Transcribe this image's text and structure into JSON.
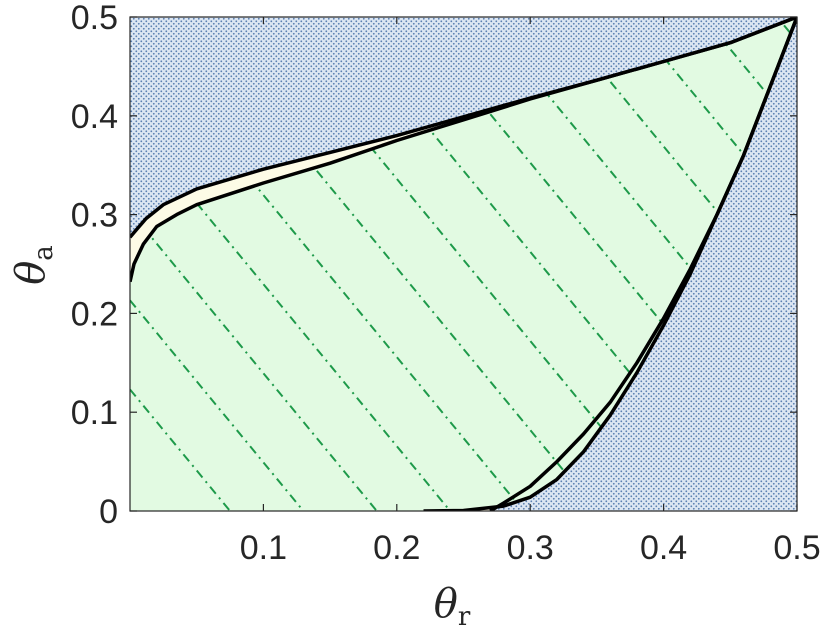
{
  "chart_data": {
    "type": "area",
    "title": "",
    "xlabel": {
      "symbol": "θ",
      "subscript": "r"
    },
    "ylabel": {
      "symbol": "θ",
      "subscript": "a"
    },
    "xlim": [
      0,
      0.5
    ],
    "ylim": [
      0,
      0.5
    ],
    "xticks": [
      0.1,
      0.2,
      0.3,
      0.4,
      0.5
    ],
    "xtick_labels": [
      "0.1",
      "0.2",
      "0.3",
      "0.4",
      "0.5"
    ],
    "yticks": [
      0,
      0.1,
      0.2,
      0.3,
      0.4,
      0.5
    ],
    "ytick_labels": [
      "0",
      "0.1",
      "0.2",
      "0.3",
      "0.4",
      "0.5"
    ],
    "grid": false,
    "colors": {
      "outer_fill": "#dce6f2",
      "outer_dots": "#5a7fb0",
      "main_fill": "#e2fae2",
      "band_fill": "#fdfbe6",
      "boundary": "#000000",
      "hatch": "#1e9a4a"
    },
    "regions": [
      {
        "role": "outer-dotted",
        "upper_boundary": [
          [
            0,
            0.277
          ],
          [
            0.005,
            0.285
          ],
          [
            0.012,
            0.296
          ],
          [
            0.025,
            0.31
          ],
          [
            0.05,
            0.326
          ],
          [
            0.1,
            0.346
          ],
          [
            0.15,
            0.363
          ],
          [
            0.2,
            0.38
          ],
          [
            0.25,
            0.399
          ],
          [
            0.3,
            0.418
          ],
          [
            0.35,
            0.436
          ],
          [
            0.4,
            0.455
          ],
          [
            0.45,
            0.474
          ],
          [
            0.5,
            0.5
          ]
        ],
        "lower_right_boundary": [
          [
            0.5,
            0.5
          ],
          [
            0.48,
            0.43
          ],
          [
            0.46,
            0.36
          ],
          [
            0.44,
            0.3
          ],
          [
            0.42,
            0.245
          ],
          [
            0.4,
            0.195
          ],
          [
            0.38,
            0.15
          ],
          [
            0.36,
            0.11
          ],
          [
            0.34,
            0.078
          ],
          [
            0.32,
            0.05
          ],
          [
            0.3,
            0.025
          ],
          [
            0.28,
            0.008
          ],
          [
            0.27,
            0.0
          ]
        ]
      },
      {
        "role": "main-hatched",
        "upper_boundary": [
          [
            0,
            0.232
          ],
          [
            0.003,
            0.25
          ],
          [
            0.01,
            0.27
          ],
          [
            0.02,
            0.288
          ],
          [
            0.035,
            0.3
          ],
          [
            0.05,
            0.31
          ],
          [
            0.1,
            0.332
          ],
          [
            0.15,
            0.352
          ],
          [
            0.2,
            0.375
          ],
          [
            0.25,
            0.396
          ],
          [
            0.3,
            0.417
          ],
          [
            0.35,
            0.436
          ],
          [
            0.4,
            0.455
          ],
          [
            0.45,
            0.474
          ],
          [
            0.5,
            0.5
          ]
        ],
        "lower_right_boundary": [
          [
            0.5,
            0.5
          ],
          [
            0.48,
            0.43
          ],
          [
            0.46,
            0.36
          ],
          [
            0.44,
            0.3
          ],
          [
            0.42,
            0.24
          ],
          [
            0.4,
            0.188
          ],
          [
            0.38,
            0.14
          ],
          [
            0.36,
            0.097
          ],
          [
            0.34,
            0.06
          ],
          [
            0.32,
            0.032
          ],
          [
            0.3,
            0.014
          ],
          [
            0.28,
            0.005
          ],
          [
            0.25,
            0.0005
          ],
          [
            0.22,
            0.0
          ]
        ]
      }
    ],
    "hatch_lines": {
      "slope": -1.64,
      "x_intercepts": [
        0.075,
        0.13,
        0.185,
        0.24,
        0.295,
        0.35,
        0.405,
        0.46,
        0.515,
        0.57,
        0.625,
        0.68,
        0.735,
        0.79
      ],
      "style": "dash-dot"
    }
  }
}
